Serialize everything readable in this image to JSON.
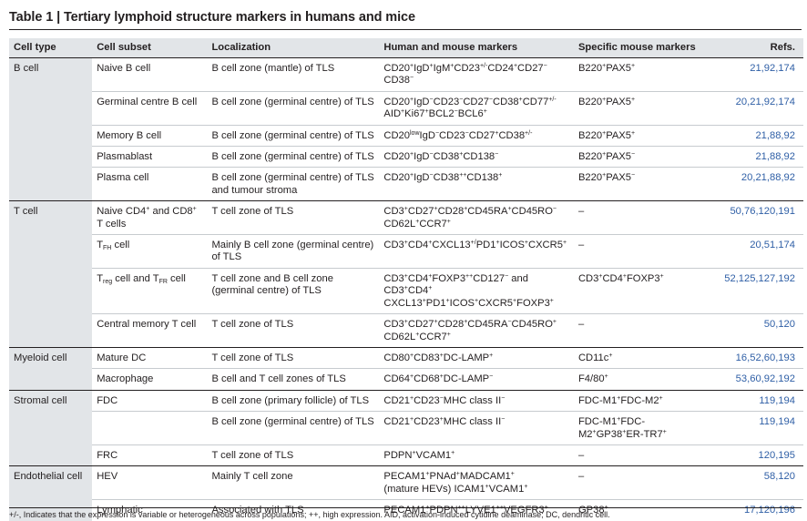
{
  "title": "Table 1 | Tertiary lymphoid structure markers in humans and mice",
  "headers": {
    "cell_type": "Cell type",
    "cell_subset": "Cell subset",
    "localization": "Localization",
    "human_mouse": "Human and mouse markers",
    "mouse": "Specific mouse markers",
    "refs": "Refs."
  },
  "rows": {
    "r0": {
      "type": "B cell",
      "subset": "Naive B cell",
      "loc": "B cell zone (mantle) of TLS",
      "refs": "21,92,174"
    },
    "r1": {
      "subset": "Germinal centre B cell",
      "loc": "B cell zone (germinal centre) of TLS",
      "refs": "20,21,92,174"
    },
    "r2": {
      "subset": "Memory B cell",
      "loc": "B cell zone (germinal centre) of TLS",
      "refs": "21,88,92"
    },
    "r3": {
      "subset": "Plasmablast",
      "loc": "B cell zone (germinal centre) of TLS",
      "refs": "21,88,92"
    },
    "r4": {
      "subset": "Plasma cell",
      "loc": "B cell zone (germinal centre) of TLS and tumour stroma",
      "refs": "20,21,88,92"
    },
    "r5": {
      "type": "T cell",
      "loc": "T cell zone of TLS",
      "mouse": "–",
      "refs": "50,76,120,191"
    },
    "r6": {
      "loc": "Mainly B cell zone (germinal centre) of TLS",
      "mouse": "–",
      "refs": "20,51,174"
    },
    "r7": {
      "loc": "T cell zone and B cell zone (germinal centre) of TLS",
      "refs": "52,125,127,192"
    },
    "r8": {
      "subset": "Central memory T cell",
      "loc": "T cell zone of TLS",
      "mouse": "–",
      "refs": "50,120"
    },
    "r9": {
      "type": "Myeloid cell",
      "subset": "Mature DC",
      "loc": "T cell zone of TLS",
      "refs": "16,52,60,193"
    },
    "r10": {
      "subset": "Macrophage",
      "loc": "B cell and T cell zones of TLS",
      "mouse": "F4/80",
      "refs": "53,60,92,192"
    },
    "r11": {
      "type": "Stromal cell",
      "subset": "FDC",
      "loc": "B cell zone (primary follicle) of TLS",
      "refs": "119,194"
    },
    "r12": {
      "loc": "B cell zone (germinal centre) of TLS",
      "refs": "119,194"
    },
    "r13": {
      "subset": "FRC",
      "loc": "T cell zone of TLS",
      "mouse": "–",
      "refs": "120,195"
    },
    "r14": {
      "type": "Endothelial cell",
      "subset": "HEV",
      "loc": "Mainly T cell zone",
      "mouse": "–",
      "refs": "58,120"
    },
    "r15": {
      "subset": "Lymphatic",
      "loc": "Associated with TLS",
      "refs": "17,120,196"
    }
  },
  "footnote": "+/-, Indicates that the expression is variable or heterogeneous across populations; ++, high expression. AID, activation-induced cytidine deaminase; DC, dendritic cell."
}
